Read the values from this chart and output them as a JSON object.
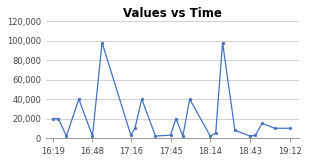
{
  "title": "Values vs Time",
  "x_labels": [
    "16:19",
    "16:48",
    "17:16",
    "17:45",
    "18:14",
    "18:43",
    "19:12"
  ],
  "x_tick_positions": [
    0,
    29,
    57,
    86,
    115,
    144,
    173
  ],
  "x_data": [
    0,
    4,
    10,
    19,
    29,
    36,
    57,
    60,
    65,
    75,
    86,
    90,
    95,
    100,
    115,
    119,
    124,
    133,
    144,
    148,
    153,
    162,
    173
  ],
  "y_data": [
    20000,
    20000,
    2000,
    40000,
    2000,
    98000,
    3000,
    10000,
    40000,
    2000,
    3000,
    20000,
    2000,
    40000,
    2000,
    5000,
    98000,
    8000,
    2000,
    3000,
    15000,
    10000,
    10000
  ],
  "ylim": [
    0,
    120000
  ],
  "yticks": [
    0,
    20000,
    40000,
    60000,
    80000,
    100000,
    120000
  ],
  "ytick_labels": [
    "0",
    "20,000",
    "40,000",
    "60,000",
    "80,000",
    "100,000",
    "120,000"
  ],
  "line_color": "#4472c4",
  "marker_color": "#4472c4",
  "bg_color": "#ffffff",
  "plot_bg_color": "#ffffff",
  "grid_color": "#bfbfbf",
  "title_fontsize": 8.5,
  "tick_fontsize": 6.0
}
